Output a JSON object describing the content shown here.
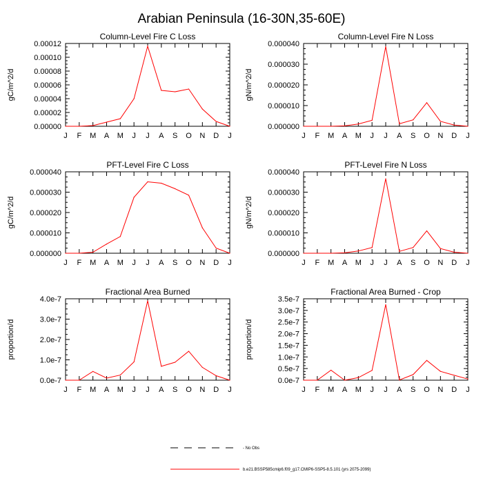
{
  "figure": {
    "title": "Arabian Peninsula (16-30N,35-60E)"
  },
  "legend": [
    {
      "label": "- No Obs",
      "style": "dashed",
      "color": "#000000"
    },
    {
      "label": "b.e21.BSSP585cmip6.f09_g17.CMIP6-SSP5-8.5.101 (yrs 2075-2099)",
      "style": "solid",
      "color": "#ff0000"
    }
  ],
  "series_color": "#ff0000",
  "chart_data": [
    {
      "type": "line",
      "title": "Column-Level Fire C Loss",
      "ylabel": "gC/m^2/d",
      "x": [
        "J",
        "F",
        "M",
        "A",
        "M",
        "J",
        "J",
        "A",
        "S",
        "O",
        "N",
        "D",
        "J"
      ],
      "ylim": [
        0,
        0.00012
      ],
      "yticks": [
        0,
        2e-05,
        4e-05,
        6e-05,
        8e-05,
        0.0001,
        0.00012
      ],
      "ytick_labels": [
        "0.00000",
        "0.00002",
        "0.00004",
        "0.00006",
        "0.00008",
        "0.00010",
        "0.00012"
      ],
      "series": [
        {
          "values": [
            0,
            0,
            1e-06,
            6e-06,
            1.1e-05,
            4e-05,
            0.000116,
            5.2e-05,
            5e-05,
            5.4e-05,
            2.5e-05,
            7e-06,
            0
          ]
        }
      ]
    },
    {
      "type": "line",
      "title": "Column-Level Fire N Loss",
      "ylabel": "gN/m^2/d",
      "x": [
        "J",
        "F",
        "M",
        "A",
        "M",
        "J",
        "J",
        "A",
        "S",
        "O",
        "N",
        "D",
        "J"
      ],
      "ylim": [
        0,
        4e-05
      ],
      "yticks": [
        0,
        1e-05,
        2e-05,
        3e-05,
        4e-05
      ],
      "ytick_labels": [
        "0.000000",
        "0.000010",
        "0.000020",
        "0.000030",
        "0.000040"
      ],
      "series": [
        {
          "values": [
            0,
            0,
            0,
            2e-07,
            1.1e-06,
            2.9e-06,
            3.85e-05,
            1.2e-06,
            3.1e-06,
            1.14e-05,
            2.4e-06,
            6e-07,
            0
          ]
        }
      ]
    },
    {
      "type": "line",
      "title": "PFT-Level Fire C Loss",
      "ylabel": "gC/m^2/d",
      "x": [
        "J",
        "F",
        "M",
        "A",
        "M",
        "J",
        "J",
        "A",
        "S",
        "O",
        "N",
        "D",
        "J"
      ],
      "ylim": [
        0,
        4e-05
      ],
      "yticks": [
        0,
        1e-05,
        2e-05,
        3e-05,
        4e-05
      ],
      "ytick_labels": [
        "0.000000",
        "0.000010",
        "0.000020",
        "0.000030",
        "0.000040"
      ],
      "series": [
        {
          "values": [
            0,
            0,
            5e-07,
            4.5e-06,
            8.2e-06,
            2.75e-05,
            3.51e-05,
            3.44e-05,
            3.17e-05,
            2.85e-05,
            1.25e-05,
            2.5e-06,
            0
          ]
        }
      ]
    },
    {
      "type": "line",
      "title": "PFT-Level Fire N Loss",
      "ylabel": "gN/m^2/d",
      "x": [
        "J",
        "F",
        "M",
        "A",
        "M",
        "J",
        "J",
        "A",
        "S",
        "O",
        "N",
        "D",
        "J"
      ],
      "ylim": [
        0,
        4e-05
      ],
      "yticks": [
        0,
        1e-05,
        2e-05,
        3e-05,
        4e-05
      ],
      "ytick_labels": [
        "0.000000",
        "0.000010",
        "0.000020",
        "0.000030",
        "0.000040"
      ],
      "series": [
        {
          "values": [
            0,
            0,
            0,
            2e-07,
            1.1e-06,
            2.8e-06,
            3.66e-05,
            9e-07,
            2.8e-06,
            1.1e-05,
            2.3e-06,
            5e-07,
            0
          ]
        }
      ]
    },
    {
      "type": "line",
      "title": "Fractional Area Burned",
      "ylabel": "proportion/d",
      "x": [
        "J",
        "F",
        "M",
        "A",
        "M",
        "J",
        "J",
        "A",
        "S",
        "O",
        "N",
        "D",
        "J"
      ],
      "ylim": [
        0,
        4e-07
      ],
      "yticks": [
        0,
        1e-07,
        2e-07,
        3e-07,
        4e-07
      ],
      "ytick_labels": [
        "0.0e-7",
        "1.0e-7",
        "2.0e-7",
        "3.0e-7",
        "4.0e-7"
      ],
      "series": [
        {
          "values": [
            0,
            0,
            4.3e-08,
            1e-08,
            2.5e-08,
            9e-08,
            3.9e-07,
            6.8e-08,
            8.8e-08,
            1.42e-07,
            6.3e-08,
            2.2e-08,
            0
          ]
        }
      ]
    },
    {
      "type": "line",
      "title": "Fractional Area Burned - Crop",
      "ylabel": "proportion/d",
      "x": [
        "J",
        "F",
        "M",
        "A",
        "M",
        "J",
        "J",
        "A",
        "S",
        "O",
        "N",
        "D",
        "J"
      ],
      "ylim": [
        0,
        3.5e-07
      ],
      "yticks": [
        0,
        5e-08,
        1e-07,
        1.5e-07,
        2e-07,
        2.5e-07,
        3e-07,
        3.5e-07
      ],
      "ytick_labels": [
        "0.0e-7",
        "0.5e-7",
        "1.0e-7",
        "1.5e-7",
        "2.0e-7",
        "2.5e-7",
        "3.0e-7",
        "3.5e-7"
      ],
      "series": [
        {
          "values": [
            0,
            0,
            4.3e-08,
            0,
            1.1e-08,
            4.2e-08,
            3.25e-07,
            1e-09,
            2.4e-08,
            8.5e-08,
            3.8e-08,
            2.1e-08,
            5e-09
          ]
        }
      ]
    }
  ]
}
